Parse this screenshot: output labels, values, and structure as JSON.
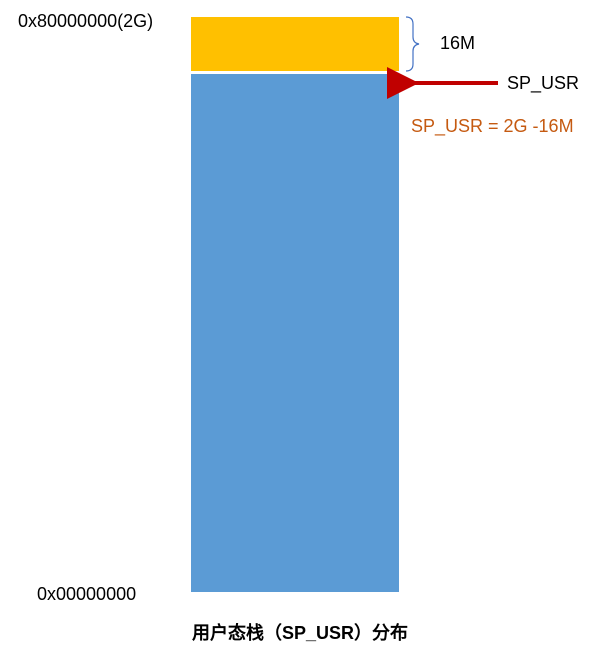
{
  "top_address": "0x80000000(2G)",
  "bottom_address": "0x00000000",
  "reserved_size": "16M",
  "pointer_label": "SP_USR",
  "formula": "SP_USR = 2G -16M",
  "caption": "用户态栈（SP_USR）分布"
}
